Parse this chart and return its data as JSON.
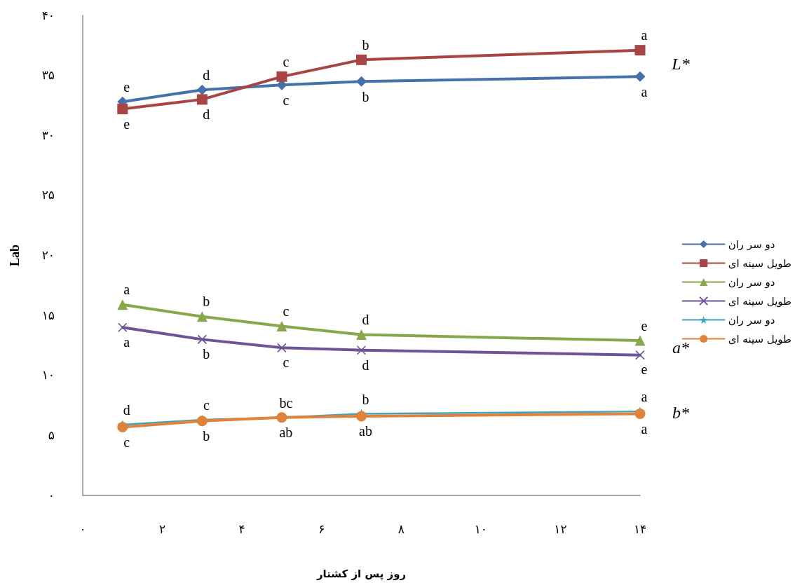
{
  "chart_data": {
    "type": "line",
    "xlabel": "روز پس از کشتار",
    "ylabel": "Lab",
    "x": [
      1,
      3,
      5,
      7,
      14
    ],
    "xlim": [
      0,
      14
    ],
    "xticks": [
      {
        "value": 0,
        "label": "۰"
      },
      {
        "value": 2,
        "label": "۲"
      },
      {
        "value": 4,
        "label": "۴"
      },
      {
        "value": 6,
        "label": "۶"
      },
      {
        "value": 8,
        "label": "۸"
      },
      {
        "value": 10,
        "label": "۱۰"
      },
      {
        "value": 12,
        "label": "۱۲"
      },
      {
        "value": 14,
        "label": "۱۴"
      }
    ],
    "ylim": [
      0,
      40
    ],
    "yticks": [
      {
        "value": 0,
        "label": "۰"
      },
      {
        "value": 5,
        "label": "۵"
      },
      {
        "value": 10,
        "label": "۱۰"
      },
      {
        "value": 15,
        "label": "۱۵"
      },
      {
        "value": 20,
        "label": "۲۰"
      },
      {
        "value": 25,
        "label": "۲۵"
      },
      {
        "value": 30,
        "label": "۳۰"
      },
      {
        "value": 35,
        "label": "۳۵"
      },
      {
        "value": 40,
        "label": "۴۰"
      }
    ],
    "grid": false,
    "legend": "right",
    "series": [
      {
        "name": "دو سر ران",
        "color": "#4471a9",
        "marker": "diamond",
        "values": [
          32.8,
          33.8,
          34.2,
          34.5,
          34.9
        ],
        "value_labels": [
          "e",
          "d",
          "c",
          "b",
          "a"
        ]
      },
      {
        "name": "طویل سینه ای",
        "color": "#a84443",
        "marker": "square",
        "values": [
          32.2,
          33.0,
          34.9,
          36.3,
          37.1
        ],
        "value_labels": [
          "e",
          "d",
          "c",
          "b",
          "a"
        ]
      },
      {
        "name": "دو سر ران",
        "color": "#87a84a",
        "marker": "triangle",
        "values": [
          15.9,
          14.9,
          14.1,
          13.4,
          12.9
        ],
        "value_labels": [
          "a",
          "b",
          "c",
          "d",
          "e"
        ]
      },
      {
        "name": "طویل سینه ای",
        "color": "#6c5497",
        "marker": "cross",
        "values": [
          14.0,
          13.0,
          12.3,
          12.1,
          11.7
        ],
        "value_labels": [
          "a",
          "b",
          "c",
          "d",
          "e"
        ]
      },
      {
        "name": "دو سر ران",
        "color": "#3ea2c0",
        "marker": "star",
        "values": [
          5.9,
          6.3,
          6.5,
          6.8,
          7.0
        ],
        "value_labels": [
          "d",
          "c",
          "bc",
          "b",
          "a"
        ]
      },
      {
        "name": "طویل سینه ای",
        "color": "#e0823a",
        "marker": "circle",
        "values": [
          5.7,
          6.2,
          6.5,
          6.6,
          6.8
        ],
        "value_labels": [
          "c",
          "b",
          "ab",
          "ab",
          "a"
        ]
      }
    ],
    "annotations": [
      "L*",
      "a*",
      "b*"
    ]
  }
}
